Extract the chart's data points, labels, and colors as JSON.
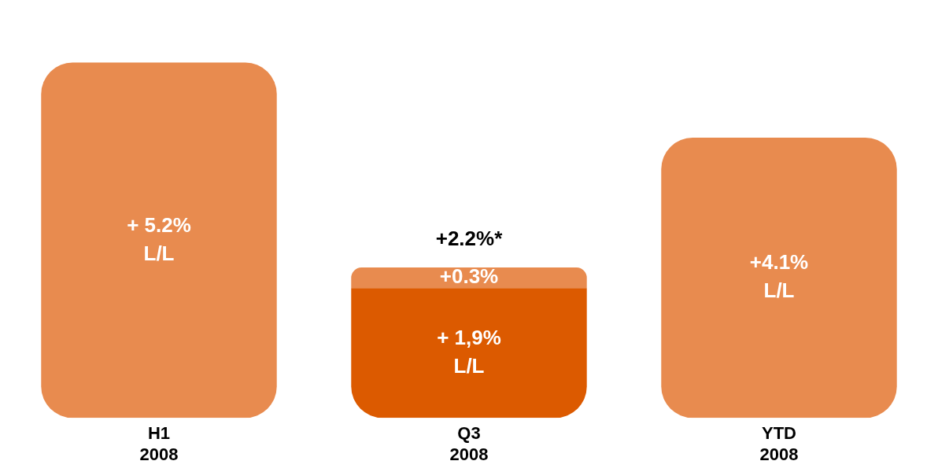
{
  "chart_data": {
    "type": "bar",
    "stacked": true,
    "categories": [
      "H1 2008",
      "Q3 2008",
      "YTD 2008"
    ],
    "series": [
      {
        "colors": [
          "#e88b4f",
          "#dc5a00",
          "#e88b4f"
        ],
        "values": [
          5.2,
          1.9,
          4.1
        ],
        "value_labels": [
          "+ 5.2%\nL/L",
          "+ 1,9%\nL/L",
          "+4.1%\nL/L"
        ]
      },
      {
        "color": "#e88b4f",
        "values": [
          null,
          0.3,
          null
        ],
        "value_labels": [
          null,
          "+0.3%",
          null
        ]
      }
    ],
    "annotations": [
      {
        "text": "+2.2%*",
        "x": "Q3 2008",
        "y": 2.2
      }
    ],
    "grid": false,
    "legend": false
  }
}
